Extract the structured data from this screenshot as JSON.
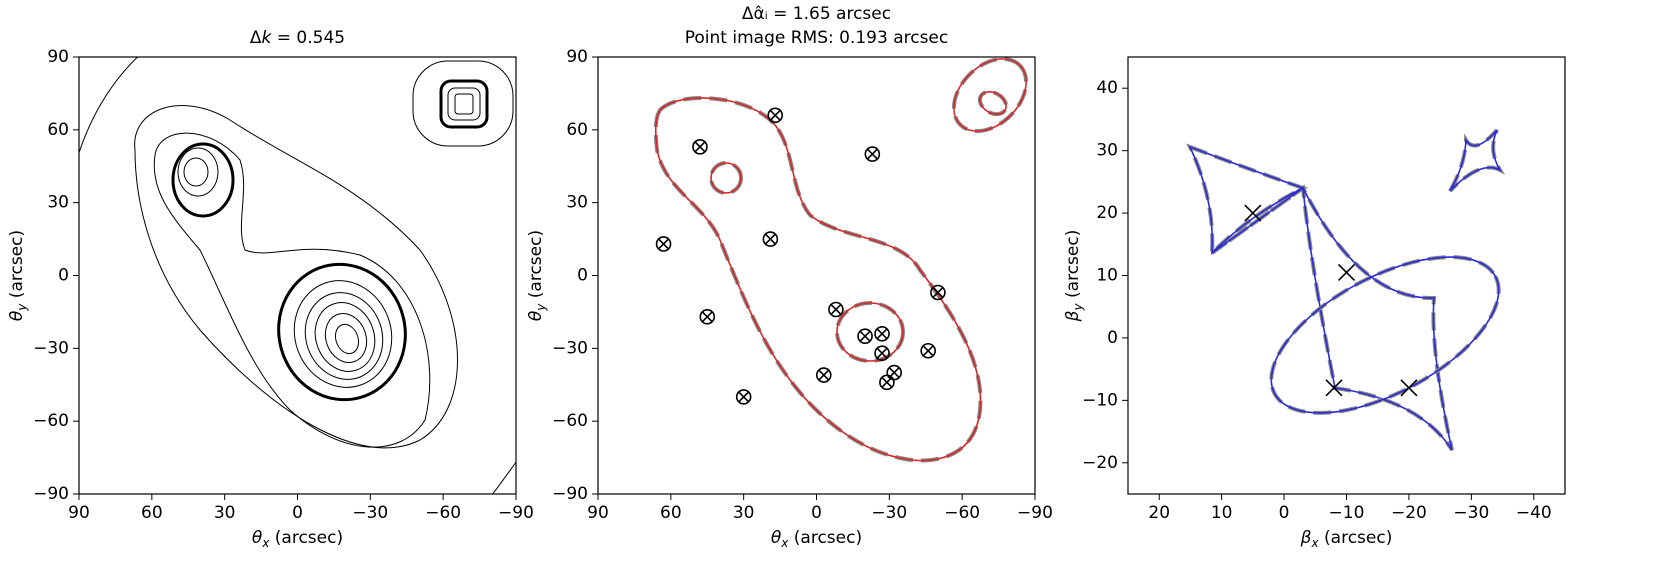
{
  "chart_data": [
    {
      "type": "contour",
      "title": {
        "prefix": "Δ",
        "symbol": "k",
        "text": " = 0.545"
      },
      "xlabel": {
        "symbol": "θ",
        "subscript": "x",
        "text": " (arcsec)"
      },
      "ylabel": {
        "symbol": "θ",
        "subscript": "y",
        "text": " (arcsec)"
      },
      "xlim": [
        90,
        -90
      ],
      "ylim": [
        -90,
        90
      ],
      "xticks": [
        90,
        60,
        30,
        0,
        {
          "value": -30,
          "label": "−30"
        },
        {
          "value": -60,
          "label": "−60"
        },
        {
          "value": -90,
          "label": "−90"
        }
      ],
      "yticks": [
        {
          "value": -90,
          "label": "−90"
        },
        {
          "value": -60,
          "label": "−60"
        },
        {
          "value": -30,
          "label": "−30"
        },
        0,
        30,
        60,
        90
      ]
    },
    {
      "type": "scatter",
      "title": "Δα̂ᵢ = 1.65 arcsec",
      "subtitle": "Point image RMS: 0.193 arcsec",
      "xlabel": {
        "symbol": "θ",
        "subscript": "x",
        "text": " (arcsec)"
      },
      "ylabel": {
        "symbol": "θ",
        "subscript": "y",
        "text": " (arcsec)"
      },
      "xlim": [
        90,
        -90
      ],
      "ylim": [
        -90,
        90
      ],
      "xticks": [
        90,
        60,
        30,
        0,
        {
          "value": -30,
          "label": "−30"
        },
        {
          "value": -60,
          "label": "−60"
        },
        {
          "value": -90,
          "label": "−90"
        }
      ],
      "yticks": [
        {
          "value": -90,
          "label": "−90"
        },
        {
          "value": -60,
          "label": "−60"
        },
        {
          "value": -30,
          "label": "−30"
        },
        0,
        30,
        60,
        90
      ],
      "marker": "circle-x",
      "color": "#000000",
      "x": [
        17,
        48,
        -23,
        63,
        19,
        45,
        -50,
        -8,
        -20,
        -27,
        -27,
        -32,
        -29,
        -46,
        -3,
        30
      ],
      "y": [
        66,
        53,
        50,
        13,
        15,
        -17,
        -7,
        -14,
        -25,
        -24,
        -32,
        -40,
        -44,
        -31,
        -41,
        -50
      ]
    },
    {
      "type": "scatter",
      "xlabel": {
        "symbol": "β",
        "subscript": "x",
        "text": " (arcsec)"
      },
      "ylabel": {
        "symbol": "β",
        "subscript": "y",
        "text": " (arcsec)"
      },
      "xlim": [
        25,
        -45
      ],
      "ylim": [
        -25,
        45
      ],
      "xticks": [
        20,
        10,
        0,
        {
          "value": -10,
          "label": "−10"
        },
        {
          "value": -20,
          "label": "−20"
        },
        {
          "value": -30,
          "label": "−30"
        },
        {
          "value": -40,
          "label": "−40"
        }
      ],
      "yticks": [
        {
          "value": -20,
          "label": "−20"
        },
        {
          "value": -10,
          "label": "−10"
        },
        0,
        10,
        20,
        30,
        40
      ],
      "marker": "x",
      "color": "#000000",
      "x": [
        5,
        -10,
        -8,
        -20
      ],
      "y": [
        20,
        10.5,
        -8,
        -8
      ]
    }
  ]
}
